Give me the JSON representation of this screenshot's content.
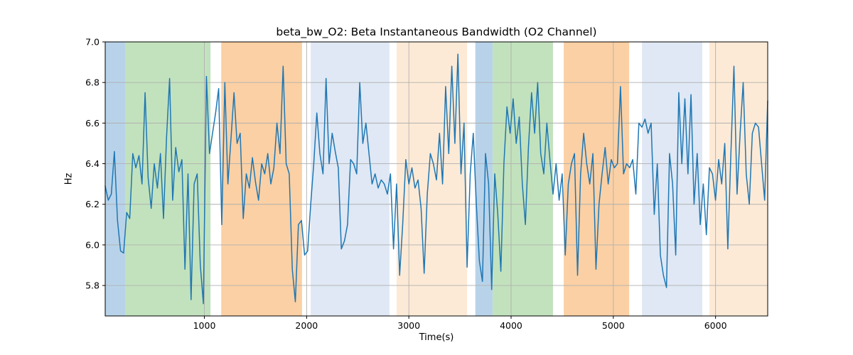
{
  "chart_data": {
    "type": "line",
    "title": "beta_bw_O2: Beta Instantaneous Bandwidth (O2 Channel)",
    "xlabel": "Time(s)",
    "ylabel": "Hz",
    "xlim": [
      30,
      6510
    ],
    "ylim": [
      5.65,
      7.0
    ],
    "xtick_values": [
      1000,
      2000,
      3000,
      4000,
      5000,
      6000
    ],
    "xtick_labels": [
      "1000",
      "2000",
      "3000",
      "4000",
      "5000",
      "6000"
    ],
    "ytick_values": [
      5.8,
      6.0,
      6.2,
      6.4,
      6.6,
      6.8,
      7.0
    ],
    "ytick_labels": [
      "5.8",
      "6.0",
      "6.2",
      "6.4",
      "6.6",
      "6.8",
      "7.0"
    ],
    "grid": true,
    "grid_color": "#b0b0b0",
    "legend": "none",
    "line_color": "#1f77b4",
    "line_width": 1.5,
    "series_name": "beta_bw_O2",
    "x_start": 30,
    "x_step": 30,
    "values": [
      6.29,
      6.22,
      6.25,
      6.46,
      6.12,
      5.97,
      5.96,
      6.16,
      6.13,
      6.45,
      6.38,
      6.44,
      6.3,
      6.75,
      6.33,
      6.18,
      6.4,
      6.28,
      6.45,
      6.13,
      6.53,
      6.82,
      6.22,
      6.48,
      6.36,
      6.42,
      5.88,
      6.35,
      5.73,
      6.3,
      6.35,
      5.9,
      5.71,
      6.83,
      6.45,
      6.55,
      6.65,
      6.77,
      6.1,
      6.8,
      6.3,
      6.52,
      6.75,
      6.5,
      6.55,
      6.13,
      6.35,
      6.28,
      6.43,
      6.31,
      6.22,
      6.4,
      6.35,
      6.45,
      6.3,
      6.38,
      6.6,
      6.45,
      6.88,
      6.4,
      6.35,
      5.88,
      5.72,
      6.1,
      6.12,
      5.95,
      5.97,
      6.2,
      6.4,
      6.65,
      6.45,
      6.35,
      6.82,
      6.4,
      6.55,
      6.46,
      6.38,
      5.98,
      6.02,
      6.1,
      6.42,
      6.4,
      6.35,
      6.8,
      6.5,
      6.6,
      6.45,
      6.3,
      6.35,
      6.28,
      6.32,
      6.3,
      6.25,
      6.35,
      5.98,
      6.3,
      5.85,
      6.1,
      6.42,
      6.3,
      6.38,
      6.28,
      6.32,
      6.18,
      5.86,
      6.25,
      6.45,
      6.4,
      6.32,
      6.55,
      6.3,
      6.78,
      6.45,
      6.88,
      6.5,
      6.94,
      6.35,
      6.6,
      5.89,
      6.35,
      6.55,
      6.2,
      5.92,
      5.82,
      6.45,
      6.3,
      5.78,
      6.35,
      6.15,
      5.87,
      6.4,
      6.68,
      6.55,
      6.72,
      6.5,
      6.63,
      6.3,
      6.1,
      6.48,
      6.75,
      6.55,
      6.8,
      6.45,
      6.35,
      6.6,
      6.42,
      6.25,
      6.4,
      6.22,
      6.35,
      5.95,
      6.3,
      6.4,
      6.45,
      5.85,
      6.35,
      6.55,
      6.4,
      6.3,
      6.45,
      5.88,
      6.2,
      6.35,
      6.48,
      6.3,
      6.42,
      6.38,
      6.4,
      6.78,
      6.35,
      6.4,
      6.38,
      6.42,
      6.25,
      6.6,
      6.58,
      6.62,
      6.55,
      6.6,
      6.15,
      6.4,
      5.95,
      5.85,
      5.79,
      6.45,
      6.3,
      5.95,
      6.75,
      6.4,
      6.72,
      6.35,
      6.74,
      6.2,
      6.45,
      6.1,
      6.3,
      6.05,
      6.38,
      6.35,
      6.22,
      6.42,
      6.3,
      6.5,
      5.98,
      6.45,
      6.88,
      6.25,
      6.55,
      6.8,
      6.35,
      6.2,
      6.55,
      6.6,
      6.58,
      6.4,
      6.22,
      6.71
    ],
    "bands": [
      {
        "start": 30,
        "end": 225,
        "color": "#b8d3e9",
        "label": "blue"
      },
      {
        "start": 225,
        "end": 1060,
        "color": "#c2e2bd",
        "label": "green"
      },
      {
        "start": 1165,
        "end": 1955,
        "color": "#fbd0a4",
        "label": "orange"
      },
      {
        "start": 2040,
        "end": 2810,
        "color": "#dfe8f4",
        "label": "light-blue"
      },
      {
        "start": 2880,
        "end": 3570,
        "color": "#fdead6",
        "label": "light-orange"
      },
      {
        "start": 3650,
        "end": 3820,
        "color": "#b8d3e9",
        "label": "blue"
      },
      {
        "start": 3820,
        "end": 4410,
        "color": "#c2e2bd",
        "label": "green"
      },
      {
        "start": 4515,
        "end": 5155,
        "color": "#fbd0a4",
        "label": "orange"
      },
      {
        "start": 5280,
        "end": 5870,
        "color": "#dfe8f4",
        "label": "light-blue"
      },
      {
        "start": 5940,
        "end": 6510,
        "color": "#fdead6",
        "label": "light-orange"
      }
    ],
    "spine_color": "#000000",
    "tick_font_size": 12.5,
    "background": "#ffffff"
  }
}
